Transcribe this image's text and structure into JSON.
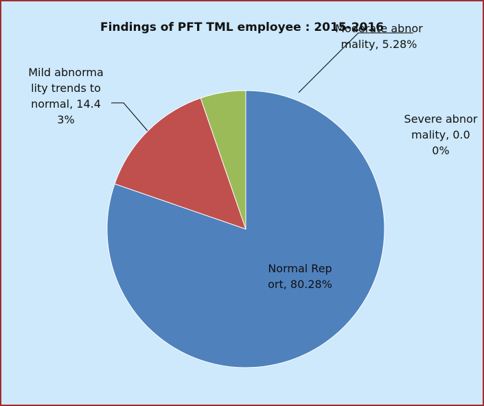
{
  "chart_data": {
    "type": "pie",
    "title": "Findings of PFT  TML employee : 2015-2016",
    "values": [
      80.28,
      14.43,
      5.28,
      0.0
    ],
    "value_labels": [
      "Normal Report, 80.28%",
      "Mild abnormality trends to normal, 14.43%",
      "Moderate abnormality, 5.28%",
      "Severe abnormality, 0.00%"
    ],
    "colors": [
      "#4f81bd",
      "#c0504d",
      "#9bbb59",
      "#8064a2"
    ]
  }
}
